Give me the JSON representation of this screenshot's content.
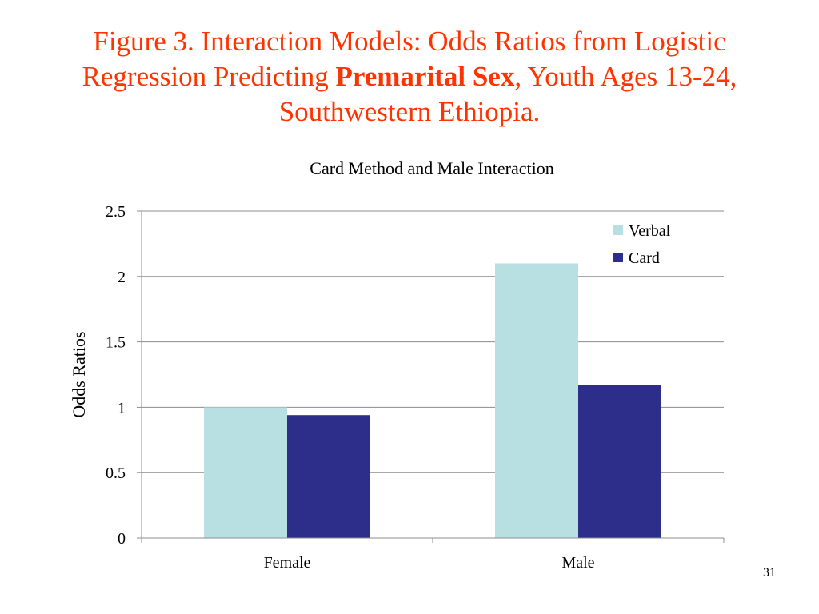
{
  "slide": {
    "title_pre": "Figure 3. Interaction Models: Odds Ratios from Logistic Regression Predicting ",
    "title_bold": "Premarital Sex",
    "title_post": ", Youth Ages 13-24, Southwestern Ethiopia.",
    "page_number": "31"
  },
  "colors": {
    "title": "#ff3300",
    "verbal": "#b8e0e2",
    "card": "#2d2d8a",
    "grid": "#8c8c8c"
  },
  "chart_data": {
    "type": "bar",
    "title": "Card Method and Male Interaction",
    "ylabel": "Odds Ratios",
    "xlabel": "",
    "categories": [
      "Female",
      "Male"
    ],
    "series": [
      {
        "name": "Verbal",
        "values": [
          1.0,
          2.1
        ]
      },
      {
        "name": "Card",
        "values": [
          0.94,
          1.17
        ]
      }
    ],
    "ylim": [
      0,
      2.5
    ],
    "yticks": [
      0,
      0.5,
      1,
      1.5,
      2,
      2.5
    ],
    "ytick_labels": [
      "0",
      "0.5",
      "1",
      "1.5",
      "2",
      "2.5"
    ],
    "grid": true,
    "legend": "top-right"
  }
}
